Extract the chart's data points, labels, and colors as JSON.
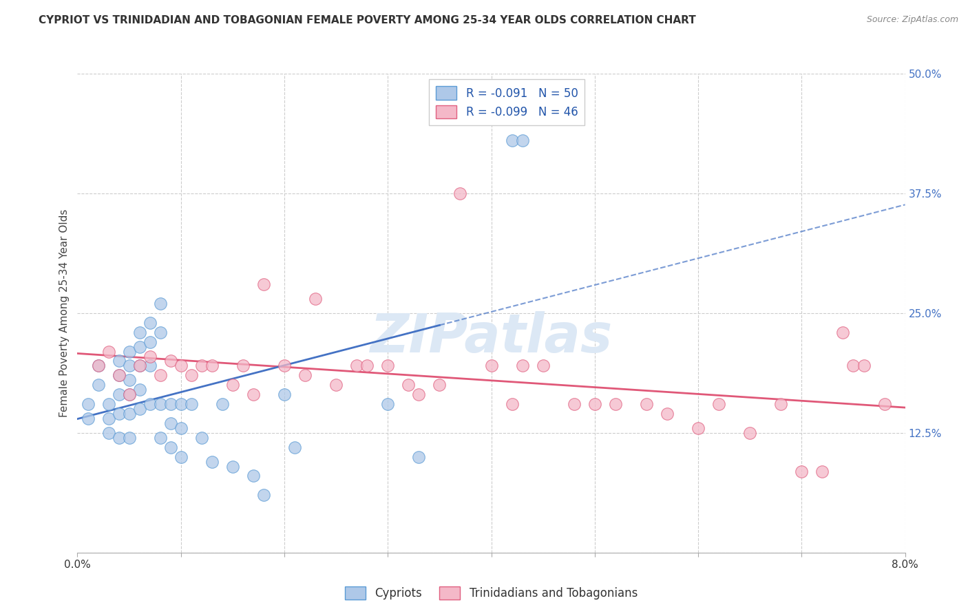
{
  "title": "CYPRIOT VS TRINIDADIAN AND TOBAGONIAN FEMALE POVERTY AMONG 25-34 YEAR OLDS CORRELATION CHART",
  "source": "Source: ZipAtlas.com",
  "ylabel": "Female Poverty Among 25-34 Year Olds",
  "xlim": [
    0.0,
    0.08
  ],
  "ylim": [
    0.0,
    0.5
  ],
  "yticks_right": [
    0.0,
    0.125,
    0.25,
    0.375,
    0.5
  ],
  "ytick_right_labels": [
    "",
    "12.5%",
    "25.0%",
    "37.5%",
    "50.0%"
  ],
  "grid_color": "#cccccc",
  "bg_color": "#ffffff",
  "blue_scatter_color": "#aec8e8",
  "blue_edge_color": "#5b9bd5",
  "pink_scatter_color": "#f4b8c8",
  "pink_edge_color": "#e06080",
  "blue_line_color": "#4472c4",
  "pink_line_color": "#e05878",
  "R_blue": -0.091,
  "N_blue": 50,
  "R_pink": -0.099,
  "N_pink": 46,
  "blue_line_solid_end": 0.035,
  "blue_line_dash_end": 0.08,
  "cypriot_x": [
    0.001,
    0.001,
    0.002,
    0.002,
    0.003,
    0.003,
    0.003,
    0.004,
    0.004,
    0.004,
    0.004,
    0.004,
    0.005,
    0.005,
    0.005,
    0.005,
    0.005,
    0.005,
    0.006,
    0.006,
    0.006,
    0.006,
    0.006,
    0.007,
    0.007,
    0.007,
    0.007,
    0.008,
    0.008,
    0.008,
    0.008,
    0.009,
    0.009,
    0.009,
    0.01,
    0.01,
    0.01,
    0.011,
    0.012,
    0.013,
    0.014,
    0.015,
    0.017,
    0.018,
    0.02,
    0.021,
    0.03,
    0.033,
    0.042,
    0.043
  ],
  "cypriot_y": [
    0.155,
    0.14,
    0.195,
    0.175,
    0.155,
    0.14,
    0.125,
    0.2,
    0.185,
    0.165,
    0.145,
    0.12,
    0.21,
    0.195,
    0.18,
    0.165,
    0.145,
    0.12,
    0.23,
    0.215,
    0.195,
    0.17,
    0.15,
    0.24,
    0.22,
    0.195,
    0.155,
    0.26,
    0.23,
    0.155,
    0.12,
    0.155,
    0.135,
    0.11,
    0.155,
    0.13,
    0.1,
    0.155,
    0.12,
    0.095,
    0.155,
    0.09,
    0.08,
    0.06,
    0.165,
    0.11,
    0.155,
    0.1,
    0.43,
    0.43
  ],
  "trini_x": [
    0.002,
    0.003,
    0.004,
    0.005,
    0.006,
    0.007,
    0.008,
    0.009,
    0.01,
    0.011,
    0.012,
    0.013,
    0.015,
    0.016,
    0.017,
    0.018,
    0.02,
    0.022,
    0.023,
    0.025,
    0.027,
    0.028,
    0.03,
    0.032,
    0.033,
    0.035,
    0.037,
    0.04,
    0.042,
    0.043,
    0.045,
    0.048,
    0.05,
    0.052,
    0.055,
    0.057,
    0.06,
    0.062,
    0.065,
    0.068,
    0.07,
    0.072,
    0.074,
    0.075,
    0.076,
    0.078
  ],
  "trini_y": [
    0.195,
    0.21,
    0.185,
    0.165,
    0.195,
    0.205,
    0.185,
    0.2,
    0.195,
    0.185,
    0.195,
    0.195,
    0.175,
    0.195,
    0.165,
    0.28,
    0.195,
    0.185,
    0.265,
    0.175,
    0.195,
    0.195,
    0.195,
    0.175,
    0.165,
    0.175,
    0.375,
    0.195,
    0.155,
    0.195,
    0.195,
    0.155,
    0.155,
    0.155,
    0.155,
    0.145,
    0.13,
    0.155,
    0.125,
    0.155,
    0.085,
    0.085,
    0.23,
    0.195,
    0.195,
    0.155
  ]
}
